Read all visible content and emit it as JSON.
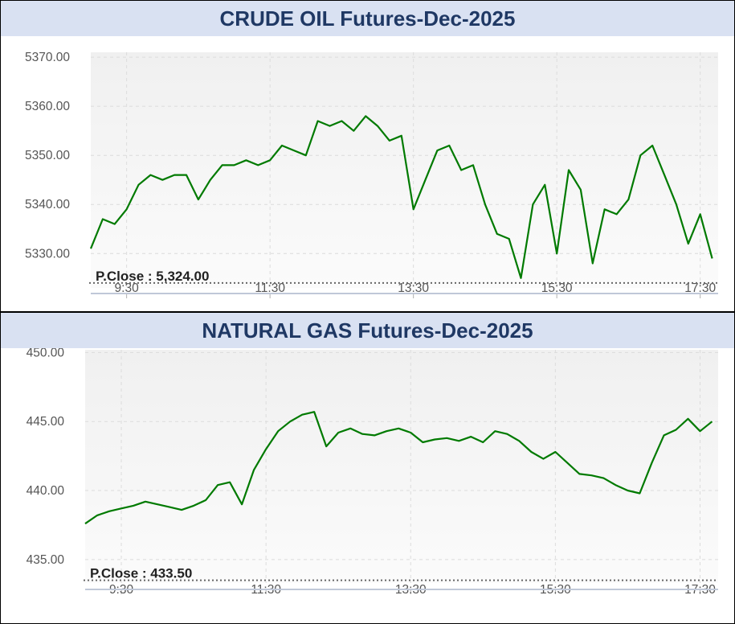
{
  "chart_data": [
    {
      "id": "crude",
      "type": "line",
      "title": "CRUDE OIL Futures-Dec-2025",
      "x_ticks": [
        "9:30",
        "11:30",
        "13:30",
        "15:30",
        "17:30"
      ],
      "y_ticks": [
        "5370.00",
        "5360.00",
        "5350.00",
        "5340.00",
        "5330.00"
      ],
      "ylim": [
        5323,
        5371
      ],
      "xlim": [
        "9:00",
        "17:45"
      ],
      "grid": true,
      "prev_close": 5324.0,
      "prev_close_label": "P.Close : 5,324.00",
      "line_color": "#007a00",
      "series": [
        {
          "x": [
            "9:00",
            "9:10",
            "9:20",
            "9:30",
            "9:40",
            "9:50",
            "10:00",
            "10:10",
            "10:20",
            "10:30",
            "10:40",
            "10:50",
            "11:00",
            "11:10",
            "11:20",
            "11:30",
            "11:40",
            "11:50",
            "12:00",
            "12:10",
            "12:20",
            "12:30",
            "12:40",
            "12:50",
            "13:00",
            "13:10",
            "13:20",
            "13:30",
            "13:40",
            "13:50",
            "14:00",
            "14:10",
            "14:20",
            "14:30",
            "14:40",
            "14:50",
            "15:00",
            "15:10",
            "15:20",
            "15:30",
            "15:40",
            "15:50",
            "16:00",
            "16:10",
            "16:20",
            "16:30",
            "16:40",
            "16:50",
            "17:00",
            "17:10",
            "17:20",
            "17:30",
            "17:40"
          ],
          "values": [
            5331,
            5337,
            5336,
            5339,
            5344,
            5346,
            5345,
            5346,
            5346,
            5341,
            5345,
            5348,
            5348,
            5349,
            5348,
            5349,
            5352,
            5351,
            5350,
            5357,
            5356,
            5357,
            5355,
            5358,
            5356,
            5353,
            5354,
            5339,
            5345,
            5351,
            5352,
            5347,
            5348,
            5340,
            5334,
            5333,
            5325,
            5340,
            5344,
            5330,
            5347,
            5343,
            5328,
            5339,
            5338,
            5341,
            5350,
            5352,
            5346,
            5340,
            5332,
            5338,
            5329
          ]
        }
      ]
    },
    {
      "id": "gas",
      "type": "line",
      "title": "NATURAL GAS Futures-Dec-2025",
      "x_ticks": [
        "9:30",
        "11:30",
        "13:30",
        "15:30",
        "17:30"
      ],
      "y_ticks": [
        "450.00",
        "445.00",
        "440.00",
        "435.00"
      ],
      "ylim": [
        433.3,
        450.2
      ],
      "xlim": [
        "9:00",
        "17:45"
      ],
      "grid": true,
      "prev_close": 433.5,
      "prev_close_label": "P.Close : 433.50",
      "line_color": "#007a00",
      "series": [
        {
          "x": [
            "9:00",
            "9:10",
            "9:20",
            "9:30",
            "9:40",
            "9:50",
            "10:00",
            "10:10",
            "10:20",
            "10:30",
            "10:40",
            "10:50",
            "11:00",
            "11:10",
            "11:20",
            "11:30",
            "11:40",
            "11:50",
            "12:00",
            "12:10",
            "12:20",
            "12:30",
            "12:40",
            "12:50",
            "13:00",
            "13:10",
            "13:20",
            "13:30",
            "13:40",
            "13:50",
            "14:00",
            "14:10",
            "14:20",
            "14:30",
            "14:40",
            "14:50",
            "15:00",
            "15:10",
            "15:20",
            "15:30",
            "15:40",
            "15:50",
            "16:00",
            "16:10",
            "16:20",
            "16:30",
            "16:40",
            "16:50",
            "17:00",
            "17:10",
            "17:20",
            "17:30",
            "17:40"
          ],
          "values": [
            437.6,
            438.2,
            438.5,
            438.7,
            438.9,
            439.2,
            439.0,
            438.8,
            438.6,
            438.9,
            439.3,
            440.4,
            440.6,
            439.0,
            441.5,
            443.0,
            444.3,
            445.0,
            445.5,
            445.7,
            443.2,
            444.2,
            444.5,
            444.1,
            444.0,
            444.3,
            444.5,
            444.2,
            443.5,
            443.7,
            443.8,
            443.6,
            443.9,
            443.5,
            444.3,
            444.1,
            443.6,
            442.8,
            442.3,
            442.8,
            442.0,
            441.2,
            441.1,
            440.9,
            440.4,
            440.0,
            439.8,
            442.0,
            444.0,
            444.4,
            445.2,
            444.3,
            445.0
          ]
        }
      ]
    }
  ]
}
